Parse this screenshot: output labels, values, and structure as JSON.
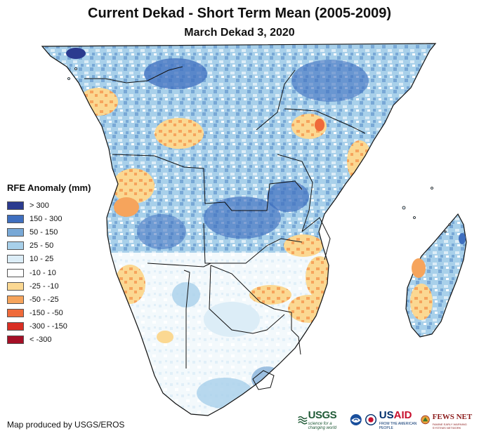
{
  "title": "Current Dekad - Short Term Mean (2005-2009)",
  "subtitle": "March Dekad 3, 2020",
  "legend": {
    "title": "RFE Anomaly (mm)",
    "items": [
      {
        "label": "> 300",
        "color": "#2b3b8f"
      },
      {
        "label": "150 - 300",
        "color": "#3f6fbf"
      },
      {
        "label": "50 - 150",
        "color": "#78a8d6"
      },
      {
        "label": "25 - 50",
        "color": "#a8d0ea"
      },
      {
        "label": "10 - 25",
        "color": "#dcedf7"
      },
      {
        "label": "-10 - 10",
        "color": "#ffffff"
      },
      {
        "label": "-25 - -10",
        "color": "#fbd892"
      },
      {
        "label": "-50 - -25",
        "color": "#f6a45c"
      },
      {
        "label": "-150 - -50",
        "color": "#ef6a3a"
      },
      {
        "label": "-300 - -150",
        "color": "#d92e23"
      },
      {
        "label": "< -300",
        "color": "#a50f26"
      }
    ]
  },
  "credit": "Map produced by USGS/EROS",
  "logos": {
    "usgs": "USGS",
    "usgs_tagline": "science for a changing world",
    "usaid_prefix": "US",
    "usaid_suffix": "AID",
    "usaid_tagline": "FROM THE AMERICAN PEOPLE",
    "fews": "FEWS NET",
    "fews_tagline": "FAMINE EARLY WARNING SYSTEMS NETWORK"
  }
}
